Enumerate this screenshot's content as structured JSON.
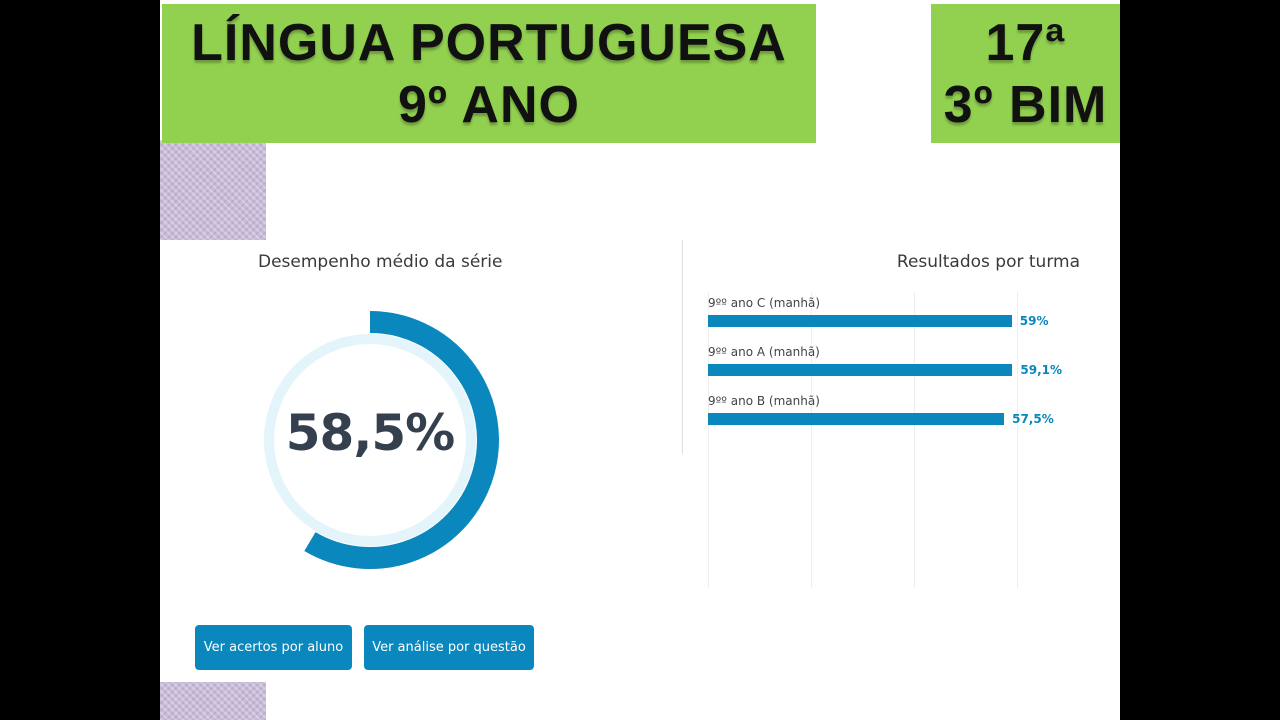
{
  "banner": {
    "subject": "LÍNGUA PORTUGUESA",
    "grade": "9º ANO",
    "number": "17ª",
    "bimester": "3º BIM"
  },
  "colors": {
    "banner_green": "#92d050",
    "accent_blue": "#0a87bd",
    "ring_light": "#e3f4fb",
    "value_text": "#34404d"
  },
  "performance": {
    "title": "Desempenho médio da série",
    "value_text": "58,5%",
    "value": 58.5
  },
  "results": {
    "title": "Resultados por turma"
  },
  "chart_data": {
    "type": "bar",
    "orientation": "horizontal",
    "categories": [
      "9ºº ano C (manhã)",
      "9ºº ano A (manhã)",
      "9ºº ano B (manhã)"
    ],
    "values": [
      59,
      59.1,
      57.5
    ],
    "value_labels": [
      "59%",
      "59,1%",
      "57,5%"
    ],
    "xlim": [
      0,
      100
    ],
    "grid": true
  },
  "buttons": {
    "by_student": "Ver acertos por aluno",
    "by_question": "Ver análise por questão"
  }
}
